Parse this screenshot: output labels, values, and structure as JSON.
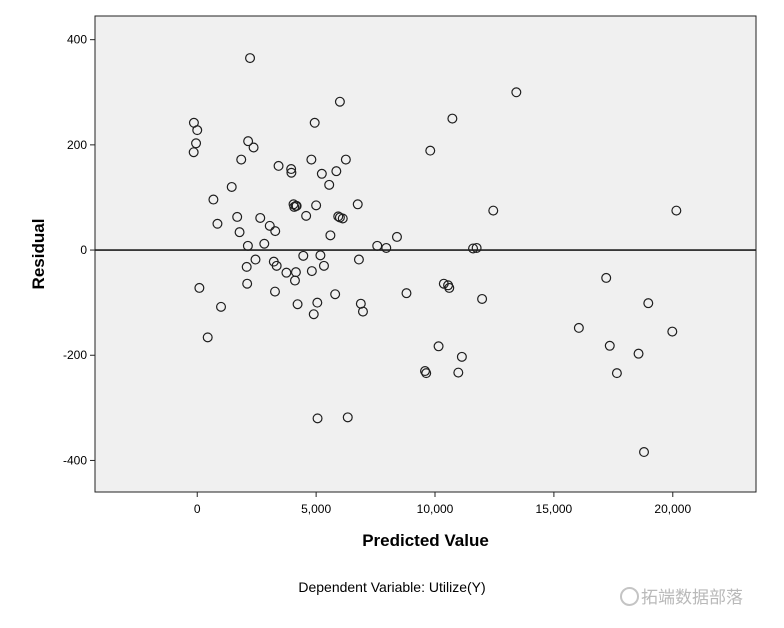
{
  "chart_data": {
    "type": "scatter",
    "xlabel": "Predicted Value",
    "ylabel": "Residual",
    "footnote": "Dependent Variable: Utilize(Y)",
    "xlim": [
      -4300,
      23500
    ],
    "ylim": [
      -460,
      445
    ],
    "xticks": [
      0,
      5000,
      10000,
      15000,
      20000
    ],
    "xtick_labels": [
      "0",
      "5,000",
      "10,000",
      "15,000",
      "20,000"
    ],
    "yticks": [
      -400,
      -200,
      0,
      200,
      400
    ],
    "ytick_labels": [
      "-400",
      "-200",
      "0",
      "200",
      "400"
    ],
    "reference_line_y": 0,
    "grid": false,
    "colors": {
      "plot_background": "#f0f0f0",
      "marker": "#1e1e1e",
      "reference_line": "#1e1e1e"
    },
    "points": [
      {
        "x": -140,
        "y": 242
      },
      {
        "x": 0,
        "y": 228
      },
      {
        "x": -50,
        "y": 203
      },
      {
        "x": -150,
        "y": 186
      },
      {
        "x": 90,
        "y": -72
      },
      {
        "x": 440,
        "y": -166
      },
      {
        "x": 680,
        "y": 96
      },
      {
        "x": 850,
        "y": 50
      },
      {
        "x": 1000,
        "y": -108
      },
      {
        "x": 1450,
        "y": 120
      },
      {
        "x": 1680,
        "y": 63
      },
      {
        "x": 1780,
        "y": 34
      },
      {
        "x": 1850,
        "y": 172
      },
      {
        "x": 2080,
        "y": -32
      },
      {
        "x": 2100,
        "y": -64
      },
      {
        "x": 2130,
        "y": 8
      },
      {
        "x": 2140,
        "y": 207
      },
      {
        "x": 2220,
        "y": 365
      },
      {
        "x": 2370,
        "y": 195
      },
      {
        "x": 2450,
        "y": -18
      },
      {
        "x": 2650,
        "y": 61
      },
      {
        "x": 2820,
        "y": 12
      },
      {
        "x": 3050,
        "y": 46
      },
      {
        "x": 3220,
        "y": -22
      },
      {
        "x": 3270,
        "y": -79
      },
      {
        "x": 3280,
        "y": 36
      },
      {
        "x": 3340,
        "y": -30
      },
      {
        "x": 3420,
        "y": 160
      },
      {
        "x": 3750,
        "y": -43
      },
      {
        "x": 3950,
        "y": 154
      },
      {
        "x": 3960,
        "y": 147
      },
      {
        "x": 4050,
        "y": 87
      },
      {
        "x": 4080,
        "y": 82
      },
      {
        "x": 4110,
        "y": -58
      },
      {
        "x": 4150,
        "y": -42
      },
      {
        "x": 4150,
        "y": 84
      },
      {
        "x": 4180,
        "y": 84
      },
      {
        "x": 4220,
        "y": -103
      },
      {
        "x": 4460,
        "y": -11
      },
      {
        "x": 4580,
        "y": 65
      },
      {
        "x": 4800,
        "y": 172
      },
      {
        "x": 4820,
        "y": -40
      },
      {
        "x": 4900,
        "y": -122
      },
      {
        "x": 4940,
        "y": 242
      },
      {
        "x": 5000,
        "y": 85
      },
      {
        "x": 5050,
        "y": -100
      },
      {
        "x": 5060,
        "y": -320
      },
      {
        "x": 5180,
        "y": -10
      },
      {
        "x": 5240,
        "y": 145
      },
      {
        "x": 5330,
        "y": -30
      },
      {
        "x": 5550,
        "y": 124
      },
      {
        "x": 5600,
        "y": 28
      },
      {
        "x": 5800,
        "y": -84
      },
      {
        "x": 5850,
        "y": 150
      },
      {
        "x": 5930,
        "y": 64
      },
      {
        "x": 6000,
        "y": 282
      },
      {
        "x": 6000,
        "y": 62
      },
      {
        "x": 6120,
        "y": 60
      },
      {
        "x": 6250,
        "y": 172
      },
      {
        "x": 6330,
        "y": -318
      },
      {
        "x": 6750,
        "y": 87
      },
      {
        "x": 6800,
        "y": -18
      },
      {
        "x": 6880,
        "y": -102
      },
      {
        "x": 6970,
        "y": -117
      },
      {
        "x": 7570,
        "y": 8
      },
      {
        "x": 7950,
        "y": 4
      },
      {
        "x": 8400,
        "y": 25
      },
      {
        "x": 8800,
        "y": -82
      },
      {
        "x": 9580,
        "y": -230
      },
      {
        "x": 9630,
        "y": -234
      },
      {
        "x": 9800,
        "y": 189
      },
      {
        "x": 10150,
        "y": -183
      },
      {
        "x": 10370,
        "y": -64
      },
      {
        "x": 10550,
        "y": -67
      },
      {
        "x": 10600,
        "y": -72
      },
      {
        "x": 10730,
        "y": 250
      },
      {
        "x": 10980,
        "y": -233
      },
      {
        "x": 11130,
        "y": -203
      },
      {
        "x": 11600,
        "y": 3
      },
      {
        "x": 11750,
        "y": 4
      },
      {
        "x": 11980,
        "y": -93
      },
      {
        "x": 12450,
        "y": 75
      },
      {
        "x": 13420,
        "y": 300
      },
      {
        "x": 16050,
        "y": -148
      },
      {
        "x": 17200,
        "y": -53
      },
      {
        "x": 17350,
        "y": -182
      },
      {
        "x": 17650,
        "y": -234
      },
      {
        "x": 18560,
        "y": -197
      },
      {
        "x": 18790,
        "y": -384
      },
      {
        "x": 18970,
        "y": -101
      },
      {
        "x": 19980,
        "y": -155
      },
      {
        "x": 20150,
        "y": 75
      }
    ]
  },
  "watermark": {
    "text": "拓端数据部落"
  }
}
